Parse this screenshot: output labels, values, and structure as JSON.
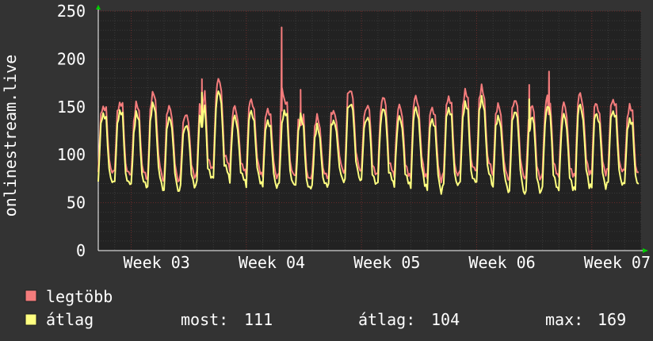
{
  "chart_data": {
    "type": "line",
    "ylabel": "onlinestream.live",
    "ylim": [
      0,
      250
    ],
    "yticks": [
      0,
      50,
      100,
      150,
      200,
      250
    ],
    "grid": true,
    "x_ticks": [
      "Week 03",
      "Week 04",
      "Week 05",
      "Week 06",
      "Week 07"
    ],
    "series": [
      {
        "name": "legtöbb",
        "color": "#f47c7c",
        "days": [
          [
            80,
            140,
            155,
            150,
            95,
            82
          ],
          [
            80,
            148,
            158,
            152,
            92,
            80
          ],
          [
            78,
            140,
            155,
            145,
            90,
            78
          ],
          [
            78,
            150,
            163,
            158,
            98,
            80
          ],
          [
            78,
            140,
            150,
            138,
            88,
            76
          ],
          [
            82,
            130,
            142,
            132,
            90,
            80
          ],
          [
            80,
            152,
            172,
            165,
            100,
            86
          ],
          [
            82,
            162,
            178,
            168,
            102,
            88
          ],
          [
            82,
            140,
            150,
            140,
            90,
            80
          ],
          [
            80,
            148,
            160,
            150,
            92,
            80
          ],
          [
            78,
            138,
            152,
            140,
            90,
            78
          ],
          [
            80,
            148,
            160,
            150,
            95,
            82
          ],
          [
            78,
            140,
            152,
            140,
            88,
            75
          ],
          [
            82,
            130,
            138,
            130,
            88,
            80
          ],
          [
            80,
            140,
            145,
            138,
            98,
            86
          ],
          [
            84,
            160,
            170,
            160,
            102,
            88
          ],
          [
            80,
            140,
            152,
            145,
            90,
            78
          ],
          [
            78,
            148,
            160,
            150,
            92,
            80
          ],
          [
            78,
            138,
            150,
            140,
            88,
            76
          ],
          [
            80,
            148,
            160,
            150,
            95,
            80
          ],
          [
            78,
            138,
            150,
            140,
            88,
            76
          ],
          [
            80,
            150,
            162,
            152,
            95,
            80
          ],
          [
            80,
            152,
            168,
            160,
            100,
            84
          ],
          [
            82,
            160,
            172,
            162,
            100,
            86
          ],
          [
            80,
            142,
            155,
            145,
            90,
            78
          ],
          [
            78,
            148,
            160,
            150,
            92,
            80
          ],
          [
            78,
            138,
            152,
            140,
            88,
            76
          ],
          [
            80,
            148,
            160,
            150,
            95,
            80
          ],
          [
            78,
            138,
            150,
            140,
            88,
            76
          ],
          [
            80,
            150,
            162,
            152,
            95,
            80
          ],
          [
            80,
            145,
            155,
            145,
            92,
            80
          ],
          [
            82,
            150,
            162,
            152,
            95,
            82
          ],
          [
            80,
            142,
            155,
            145,
            90,
            78
          ]
        ],
        "spikes": [
          [
            11.15,
            233
          ],
          [
            12.3,
            168
          ],
          [
            27.4,
            187
          ],
          [
            26.2,
            173
          ],
          [
            6.3,
            179
          ]
        ]
      },
      {
        "name": "átlag",
        "color": "#ffff80",
        "days": [
          [
            70,
            130,
            148,
            140,
            85,
            72
          ],
          [
            68,
            135,
            150,
            142,
            82,
            70
          ],
          [
            68,
            128,
            145,
            135,
            80,
            68
          ],
          [
            70,
            138,
            152,
            145,
            85,
            70
          ],
          [
            68,
            125,
            138,
            128,
            78,
            66
          ],
          [
            70,
            118,
            130,
            122,
            80,
            70
          ],
          [
            70,
            140,
            160,
            150,
            90,
            76
          ],
          [
            72,
            150,
            165,
            155,
            92,
            78
          ],
          [
            70,
            128,
            140,
            130,
            80,
            70
          ],
          [
            68,
            135,
            148,
            138,
            82,
            70
          ],
          [
            68,
            125,
            140,
            128,
            78,
            68
          ],
          [
            70,
            135,
            148,
            138,
            85,
            72
          ],
          [
            68,
            128,
            140,
            128,
            78,
            66
          ],
          [
            70,
            118,
            128,
            120,
            78,
            70
          ],
          [
            72,
            128,
            135,
            128,
            86,
            76
          ],
          [
            74,
            145,
            155,
            148,
            92,
            78
          ],
          [
            70,
            128,
            140,
            132,
            80,
            68
          ],
          [
            68,
            135,
            148,
            138,
            82,
            70
          ],
          [
            68,
            125,
            138,
            128,
            78,
            68
          ],
          [
            70,
            135,
            148,
            138,
            85,
            70
          ],
          [
            66,
            125,
            138,
            128,
            78,
            64
          ],
          [
            68,
            138,
            150,
            140,
            85,
            70
          ],
          [
            68,
            140,
            155,
            148,
            88,
            72
          ],
          [
            70,
            148,
            160,
            150,
            90,
            74
          ],
          [
            68,
            130,
            142,
            132,
            80,
            66
          ],
          [
            64,
            135,
            148,
            138,
            80,
            64
          ],
          [
            62,
            125,
            140,
            128,
            76,
            62
          ],
          [
            66,
            135,
            148,
            138,
            82,
            66
          ],
          [
            64,
            125,
            138,
            128,
            78,
            62
          ],
          [
            66,
            138,
            150,
            140,
            84,
            66
          ],
          [
            66,
            132,
            145,
            135,
            80,
            66
          ],
          [
            68,
            138,
            150,
            140,
            85,
            68
          ],
          [
            66,
            130,
            140,
            132,
            80,
            66
          ]
        ],
        "spikes": [
          [
            26.2,
            158
          ],
          [
            6.3,
            165
          ]
        ]
      }
    ]
  },
  "legend": {
    "series1": "legtöbb",
    "series2": "átlag",
    "now_label": "most:",
    "now_value": "111",
    "avg_label": "átlag:",
    "avg_value": "104",
    "max_label": "max:",
    "max_value": "169"
  }
}
